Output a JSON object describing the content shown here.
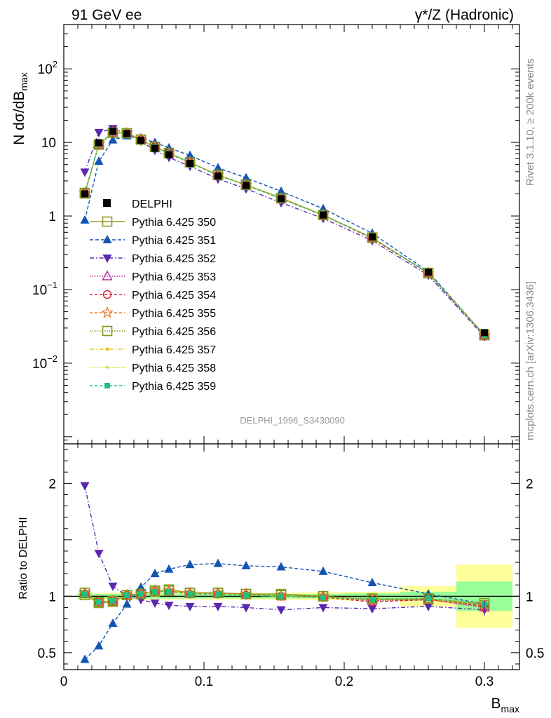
{
  "header": {
    "left_title": "91 GeV ee",
    "right_title": "γ*/Z (Hadronic)"
  },
  "side_labels": {
    "rivet": "Rivet 3.1.10, ≥ 200k events",
    "mcplots": "mcplots.cern.ch [arXiv:1306.3436]"
  },
  "analysis_label": "DELPHI_1996_S3430090",
  "chart_data": {
    "type": "line",
    "x": [
      0.015,
      0.025,
      0.035,
      0.045,
      0.055,
      0.065,
      0.075,
      0.09,
      0.11,
      0.13,
      0.155,
      0.185,
      0.22,
      0.26,
      0.3
    ],
    "xlabel": "B",
    "xlabel_sub": "max",
    "xlim": [
      0,
      0.325
    ],
    "x_ticks": [
      "0",
      "0.1",
      "0.2",
      "0.3"
    ],
    "top_panel": {
      "ylabel": "N dσ/dB",
      "ylabel_sub": "max",
      "yscale": "log",
      "ylim": [
        0.0008,
        400
      ],
      "y_ticks": [
        {
          "value": 0.01,
          "base": "10",
          "exp": "−2"
        },
        {
          "value": 0.1,
          "base": "10",
          "exp": "−1"
        },
        {
          "value": 1,
          "base": "1",
          "exp": ""
        },
        {
          "value": 10,
          "base": "10",
          "exp": ""
        },
        {
          "value": 100,
          "base": "10",
          "exp": "2"
        }
      ]
    },
    "ratio_panel": {
      "ylabel": "Ratio to DELPHI",
      "ylim": [
        0.35,
        2.35
      ],
      "y_ticks": [
        "0.5",
        "1",
        "2"
      ],
      "y_tick_values": [
        0.5,
        1,
        2
      ],
      "band_edges": [
        0.01,
        0.02,
        0.03,
        0.04,
        0.05,
        0.06,
        0.07,
        0.08,
        0.1,
        0.12,
        0.14,
        0.17,
        0.2,
        0.24,
        0.28,
        0.32
      ],
      "band_inner": [
        0.025,
        0.02,
        0.02,
        0.02,
        0.02,
        0.02,
        0.02,
        0.02,
        0.02,
        0.02,
        0.02,
        0.02,
        0.025,
        0.04,
        0.13
      ],
      "band_outer": [
        0.035,
        0.03,
        0.03,
        0.03,
        0.03,
        0.03,
        0.03,
        0.03,
        0.03,
        0.03,
        0.03,
        0.035,
        0.04,
        0.09,
        0.28
      ]
    },
    "data_series": {
      "name": "DELPHI",
      "values": [
        2.0,
        9.9,
        14.2,
        13.2,
        10.7,
        8.3,
        6.8,
        5.2,
        3.5,
        2.6,
        1.72,
        1.03,
        0.52,
        0.172,
        0.026
      ]
    },
    "series": [
      {
        "name": "Pythia 6.425 350",
        "color": "#9a9a28",
        "dash": "",
        "marker": "square-open",
        "ratio": [
          1.01,
          0.94,
          0.95,
          1.01,
          1.02,
          1.04,
          1.06,
          1.03,
          1.03,
          1.02,
          1.02,
          1.0,
          0.97,
          0.97,
          0.92
        ]
      },
      {
        "name": "Pythia 6.425 351",
        "color": "#1455b4",
        "dash": "5,3",
        "marker": "triangle-up",
        "ratio": [
          0.44,
          0.56,
          0.76,
          0.93,
          1.08,
          1.2,
          1.24,
          1.28,
          1.29,
          1.27,
          1.26,
          1.22,
          1.12,
          1.02,
          0.93
        ]
      },
      {
        "name": "Pythia 6.425 352",
        "color": "#5a28b0",
        "dash": "6,3,1.5,3",
        "marker": "triangle-down",
        "ratio": [
          1.98,
          1.38,
          1.09,
          1.0,
          0.97,
          0.94,
          0.92,
          0.91,
          0.91,
          0.9,
          0.88,
          0.9,
          0.89,
          0.91,
          0.88
        ]
      },
      {
        "name": "Pythia 6.425 353",
        "color": "#bb2a9a",
        "dash": "1.5,2",
        "marker": "triangle-up-open",
        "ratio": [
          1.02,
          0.95,
          0.96,
          1.01,
          1.02,
          1.04,
          1.05,
          1.02,
          1.02,
          1.01,
          1.0,
          0.99,
          0.96,
          0.97,
          0.9
        ]
      },
      {
        "name": "Pythia 6.425 354",
        "color": "#d8203a",
        "dash": "4,3",
        "marker": "circle-open",
        "ratio": [
          1.02,
          0.95,
          0.96,
          1.01,
          1.02,
          1.04,
          1.04,
          1.02,
          1.02,
          1.01,
          1.0,
          0.99,
          0.95,
          0.97,
          0.91
        ]
      },
      {
        "name": "Pythia 6.425 355",
        "color": "#f07828",
        "dash": "4,3",
        "marker": "star-open",
        "ratio": [
          1.03,
          0.95,
          0.96,
          1.01,
          1.02,
          1.05,
          1.05,
          1.03,
          1.03,
          1.02,
          1.0,
          1.0,
          0.97,
          0.97,
          0.92
        ]
      },
      {
        "name": "Pythia 6.425 356",
        "color": "#7a9a1a",
        "dash": "1.5,2",
        "marker": "square-open",
        "ratio": [
          1.03,
          0.95,
          0.96,
          1.01,
          1.02,
          1.05,
          1.05,
          1.03,
          1.03,
          1.02,
          1.01,
          1.0,
          0.98,
          0.98,
          0.94
        ]
      },
      {
        "name": "Pythia 6.425 357",
        "color": "#e8c818",
        "dash": "6,3,1.5,3",
        "marker": "dot",
        "ratio": [
          1.02,
          0.95,
          0.96,
          1.01,
          1.02,
          1.04,
          1.05,
          1.02,
          1.02,
          1.01,
          1.0,
          0.99,
          0.97,
          0.98,
          0.93
        ]
      },
      {
        "name": "Pythia 6.425 358",
        "color": "#c8d428",
        "dash": "1.5,2",
        "marker": "dot-small",
        "ratio": [
          1.02,
          0.95,
          0.96,
          1.01,
          1.02,
          1.04,
          1.05,
          1.02,
          1.02,
          1.01,
          1.0,
          0.99,
          0.97,
          0.98,
          0.93
        ]
      },
      {
        "name": "Pythia 6.425 359",
        "color": "#20c080",
        "dash": "4,3",
        "marker": "square-filled",
        "ratio": [
          1.02,
          0.95,
          0.96,
          1.01,
          1.02,
          1.04,
          1.04,
          1.02,
          1.02,
          1.01,
          1.0,
          0.99,
          0.97,
          0.98,
          0.93
        ]
      }
    ],
    "legend_placement": "middle-left"
  }
}
